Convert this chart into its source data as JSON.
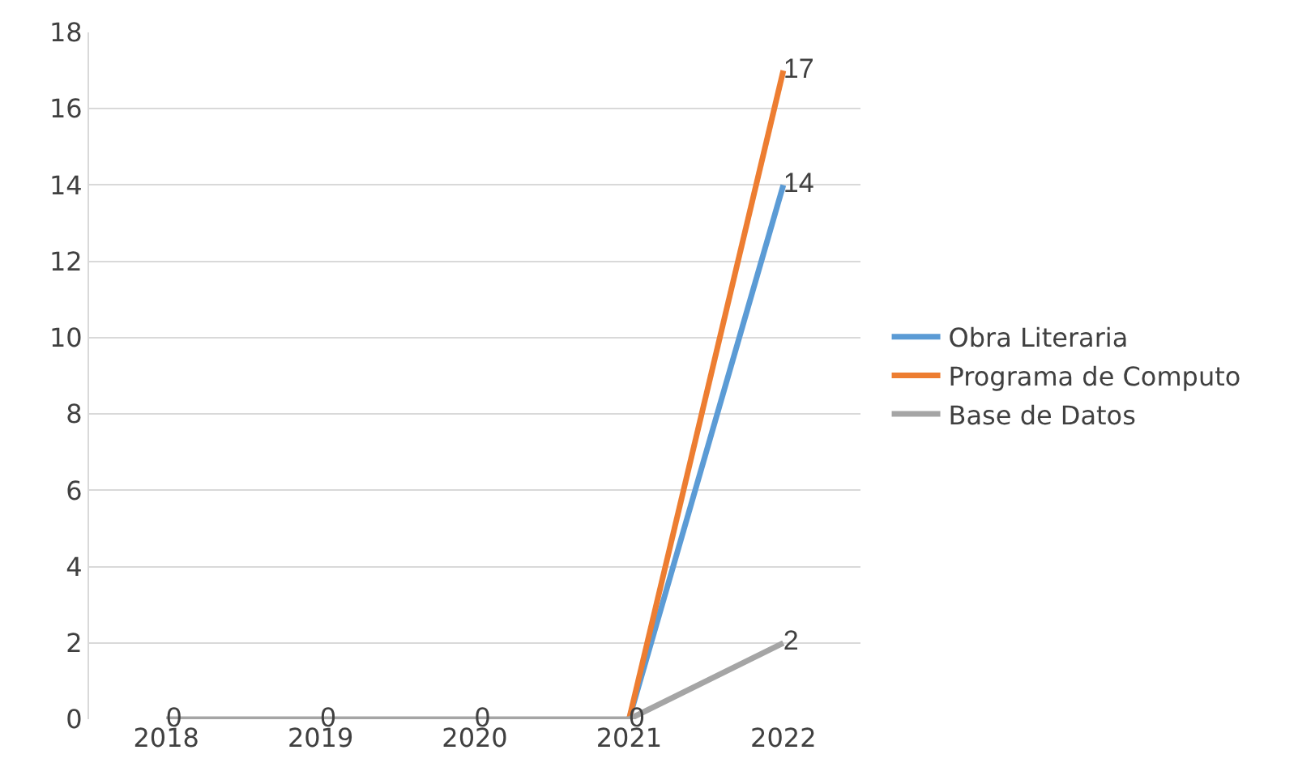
{
  "chart_data": {
    "type": "line",
    "categories": [
      "2018",
      "2019",
      "2020",
      "2021",
      "2022"
    ],
    "series": [
      {
        "name": "Obra Literaria",
        "color": "#5b9bd5",
        "values": [
          null,
          null,
          null,
          0,
          14
        ],
        "value_labels": [
          null,
          null,
          null,
          null,
          "14"
        ]
      },
      {
        "name": "Programa de Computo",
        "color": "#ed7d31",
        "values": [
          null,
          null,
          null,
          0,
          17
        ],
        "value_labels": [
          null,
          null,
          null,
          null,
          "17"
        ]
      },
      {
        "name": "Base de Datos",
        "color": "#a5a5a5",
        "values": [
          0,
          0,
          0,
          0,
          2
        ],
        "value_labels": [
          "0",
          "0",
          "0",
          "0",
          "2"
        ]
      }
    ],
    "ylim": [
      0,
      18
    ],
    "yticks": [
      0,
      2,
      4,
      6,
      8,
      10,
      12,
      14,
      16,
      18
    ],
    "grid": "y",
    "legend": "right",
    "marker": "none",
    "line_style": "solid"
  }
}
